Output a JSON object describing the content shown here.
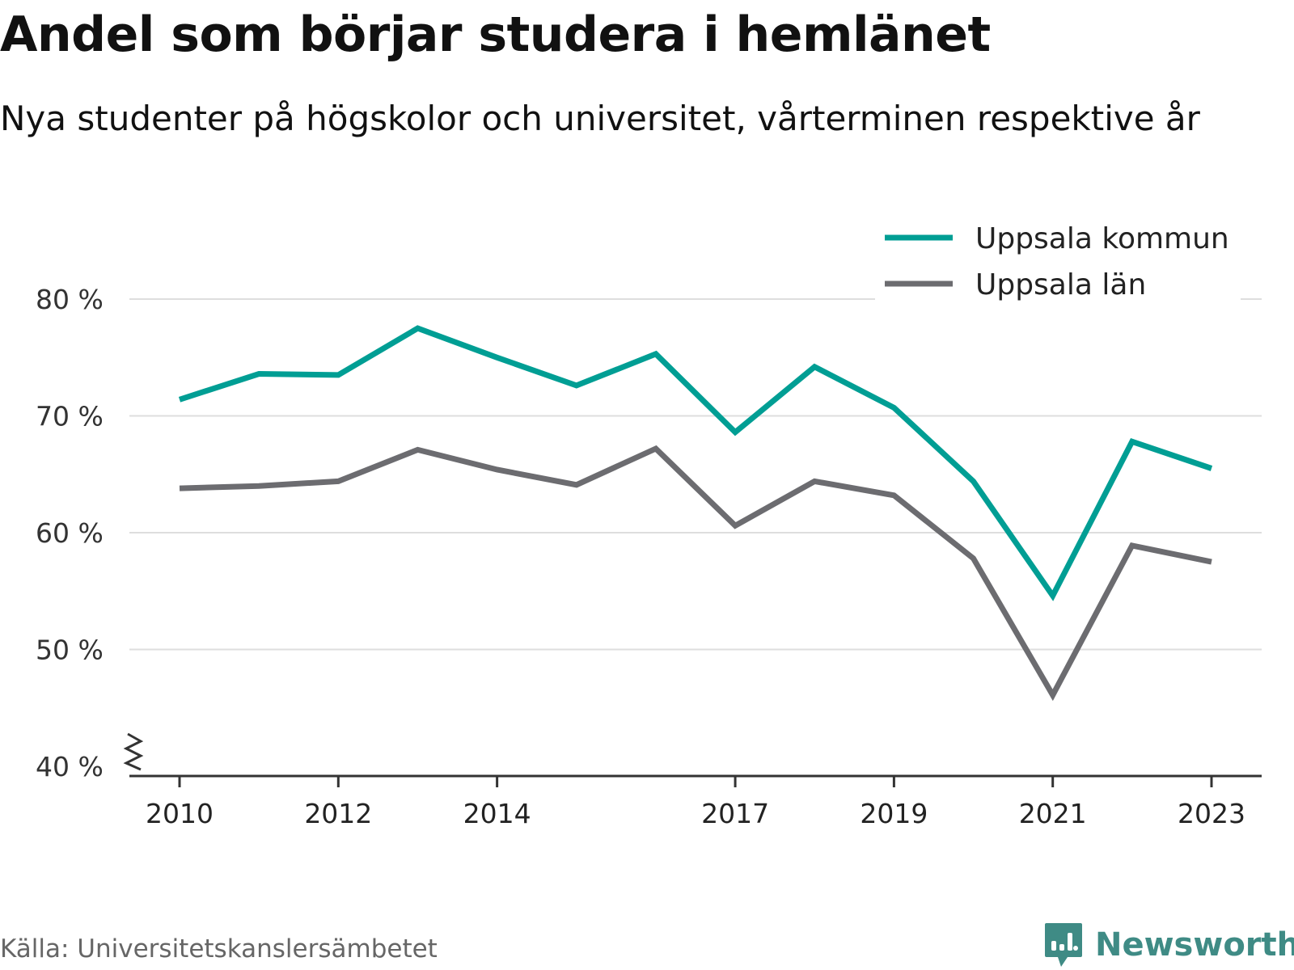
{
  "title": "Andel som börjar studera i hemlänet",
  "subtitle": "Nya studenter på högskolor och universitet, vårterminen respektive år",
  "source": "Källa: Universitetskanslersämbetet",
  "brand": {
    "name": "Newsworthy",
    "icon": "newsworthy-logo-icon",
    "color": "#3f8b85"
  },
  "chart_data": {
    "type": "line",
    "x": [
      2010,
      2011,
      2012,
      2013,
      2014,
      2015,
      2016,
      2017,
      2018,
      2019,
      2020,
      2021,
      2022,
      2023
    ],
    "x_tick_values": [
      2010,
      2012,
      2014,
      2017,
      2019,
      2021,
      2023
    ],
    "x_tick_labels": [
      "2010",
      "2012",
      "2014",
      "2017",
      "2019",
      "2021",
      "2023"
    ],
    "y_tick_values": [
      40,
      50,
      60,
      70,
      80
    ],
    "y_tick_labels": [
      "40 %",
      "50 %",
      "60 %",
      "70 %",
      "80 %"
    ],
    "ylim": [
      40,
      80
    ],
    "y_axis_break": true,
    "grid": true,
    "legend_position": "top-right",
    "series": [
      {
        "name": "Uppsala kommun",
        "color": "#009e94",
        "values": [
          71.4,
          73.6,
          73.5,
          77.5,
          75.0,
          72.6,
          75.3,
          68.6,
          74.2,
          70.7,
          64.4,
          54.6,
          67.8,
          65.5
        ]
      },
      {
        "name": "Uppsala län",
        "color": "#6c6c70",
        "values": [
          63.8,
          64.0,
          64.4,
          67.1,
          65.4,
          64.1,
          67.2,
          60.6,
          64.4,
          63.2,
          57.8,
          46.1,
          58.9,
          57.5
        ]
      }
    ]
  }
}
